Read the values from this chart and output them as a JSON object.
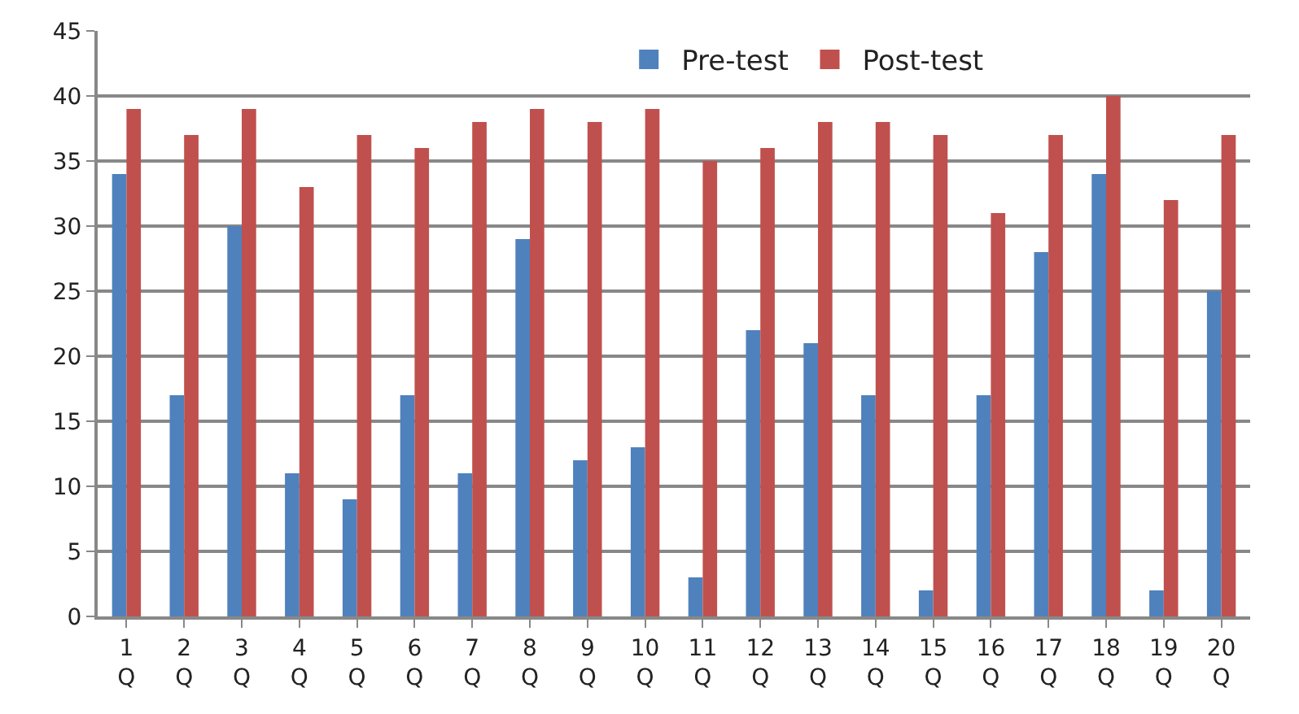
{
  "chart_data": {
    "type": "bar",
    "categories": [
      "1\nQ",
      "2\nQ",
      "3\nQ",
      "4\nQ",
      "5\nQ",
      "6\nQ",
      "7\nQ",
      "8\nQ",
      "9\nQ",
      "10\nQ",
      "11\nQ",
      "12\nQ",
      "13\nQ",
      "14\nQ",
      "15\nQ",
      "16\nQ",
      "17\nQ",
      "18\nQ",
      "19\nQ",
      "20\nQ"
    ],
    "series": [
      {
        "name": "Pre-test",
        "color": "#4f81bd",
        "values": [
          34,
          17,
          30,
          11,
          9,
          17,
          11,
          29,
          12,
          13,
          3,
          22,
          21,
          17,
          2,
          17,
          28,
          34,
          2,
          25
        ]
      },
      {
        "name": "Post-test",
        "color": "#c0504d",
        "values": [
          39,
          37,
          39,
          33,
          37,
          36,
          38,
          39,
          38,
          39,
          35,
          36,
          38,
          38,
          37,
          31,
          37,
          40,
          32,
          37
        ]
      }
    ],
    "ylim": [
      0,
      45
    ],
    "yticks": [
      0,
      5,
      10,
      15,
      20,
      25,
      30,
      35,
      40,
      45
    ],
    "grid": "y",
    "legend": "top"
  }
}
